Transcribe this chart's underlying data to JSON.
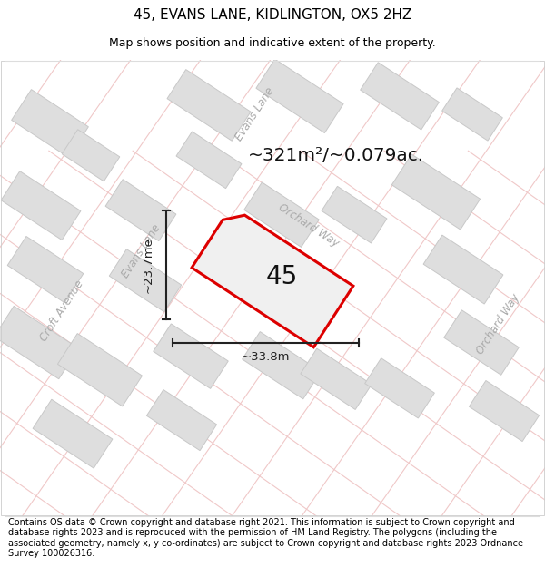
{
  "title": "45, EVANS LANE, KIDLINGTON, OX5 2HZ",
  "subtitle": "Map shows position and indicative extent of the property.",
  "footer": "Contains OS data © Crown copyright and database right 2021. This information is subject to Crown copyright and database rights 2023 and is reproduced with the permission of HM Land Registry. The polygons (including the associated geometry, namely x, y co-ordinates) are subject to Crown copyright and database rights 2023 Ordnance Survey 100026316.",
  "area_text": "~321m²/~0.079ac.",
  "property_number": "45",
  "dim_width": "~33.8m",
  "dim_height": "~23.7me",
  "bg_map_color": "#f8f6f6",
  "building_fill": "#dedede",
  "building_edge": "#c8c8c8",
  "property_fill": "#f0f0f0",
  "property_edge": "#dd0000",
  "road_line_color": "#f0c8c8",
  "road_label_color": "#aaaaaa",
  "dim_color": "#222222",
  "title_fontsize": 11,
  "subtitle_fontsize": 9,
  "footer_fontsize": 7.0
}
